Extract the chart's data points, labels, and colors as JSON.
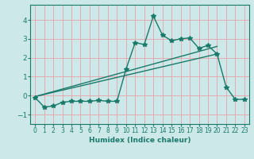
{
  "xlabel": "Humidex (Indice chaleur)",
  "ylabel": "",
  "xlim": [
    -0.5,
    23.5
  ],
  "ylim": [
    -1.5,
    4.8
  ],
  "yticks": [
    -1,
    0,
    1,
    2,
    3,
    4
  ],
  "xticks": [
    0,
    1,
    2,
    3,
    4,
    5,
    6,
    7,
    8,
    9,
    10,
    11,
    12,
    13,
    14,
    15,
    16,
    17,
    18,
    19,
    20,
    21,
    22,
    23
  ],
  "bg_color": "#cce8e8",
  "grid_color": "#e8a0a8",
  "line_color": "#1a7a6a",
  "line1_x": [
    0,
    1,
    2,
    3,
    4,
    5,
    6,
    7,
    8,
    9,
    10,
    11,
    12,
    13,
    14,
    15,
    16,
    17,
    18,
    19,
    20,
    21,
    22,
    23
  ],
  "line1_y": [
    -0.1,
    -0.6,
    -0.55,
    -0.35,
    -0.3,
    -0.3,
    -0.3,
    -0.25,
    -0.3,
    -0.3,
    1.4,
    2.8,
    2.7,
    4.2,
    3.2,
    2.9,
    3.0,
    3.05,
    2.5,
    2.65,
    2.2,
    0.45,
    -0.2,
    -0.2
  ],
  "line2_x": [
    0,
    20
  ],
  "line2_y": [
    -0.05,
    2.2
  ],
  "line3_x": [
    0,
    20
  ],
  "line3_y": [
    -0.05,
    2.6
  ],
  "marker": "*",
  "markersize": 4,
  "linewidth": 1.0,
  "xtick_fontsize": 5.5,
  "ytick_fontsize": 6.5
}
